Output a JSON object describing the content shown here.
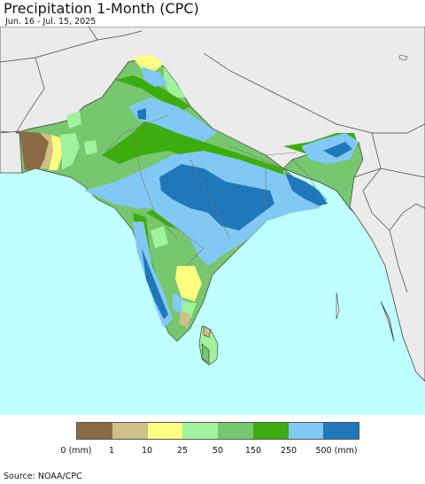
{
  "title": "Precipitation 1-Month (CPC)",
  "date_range": "Jun. 16 - Jul. 15, 2025",
  "legend": {
    "colors": [
      "#8b6a46",
      "#d2be87",
      "#ffff80",
      "#a0f29c",
      "#76c76e",
      "#3cac0e",
      "#82c8f5",
      "#1e78b9"
    ],
    "labels": [
      "0 (mm)",
      "1",
      "10",
      "25",
      "50",
      "150",
      "250",
      "500 (mm)"
    ]
  },
  "source": "Source: NOAA/CPC",
  "colors": {
    "ocean": "#bfffff",
    "land_outside": "#ebebeb",
    "border": "#444444"
  }
}
